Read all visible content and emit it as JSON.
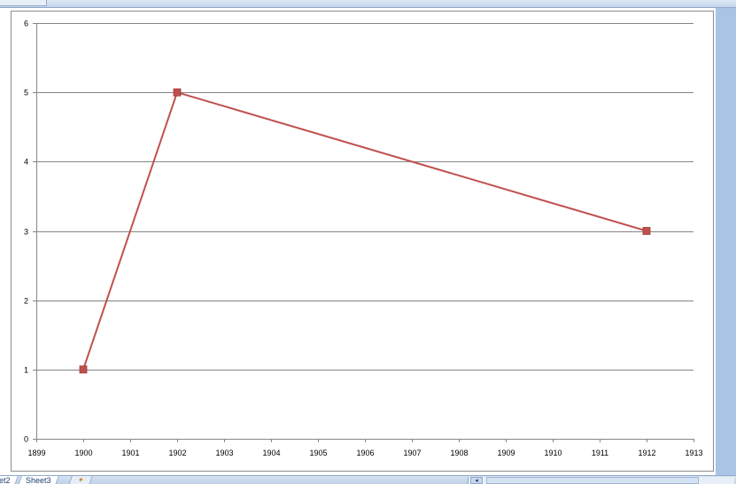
{
  "sheet_tabs": [
    {
      "label": "et2"
    },
    {
      "label": "Sheet3"
    }
  ],
  "colors": {
    "series_line": "#c0504d",
    "series_marker": "#c0504d",
    "gridline": "#868686",
    "axis": "#868686"
  },
  "icons": {
    "new_sheet": "insert-sheet-icon",
    "scroll_left": "scroll-left-arrow-icon"
  },
  "chart_data": {
    "type": "scatter",
    "title": "",
    "xlabel": "",
    "ylabel": "",
    "xlim": [
      1899,
      1913
    ],
    "ylim": [
      0,
      6
    ],
    "x_ticks": [
      "1899",
      "1900",
      "1901",
      "1902",
      "1903",
      "1904",
      "1905",
      "1906",
      "1907",
      "1908",
      "1909",
      "1910",
      "1911",
      "1912",
      "1913"
    ],
    "y_ticks": [
      "0",
      "1",
      "2",
      "3",
      "4",
      "5",
      "6"
    ],
    "grid": "horizontal",
    "legend": "none",
    "series": [
      {
        "x": [
          1900,
          1902,
          1912
        ],
        "y": [
          1,
          5,
          3
        ],
        "style": "lines-with-square-markers"
      }
    ]
  }
}
